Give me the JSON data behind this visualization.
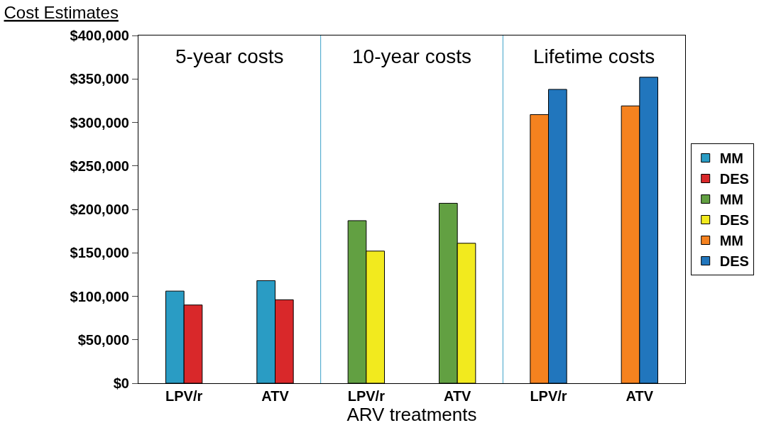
{
  "chart_data": {
    "type": "bar",
    "title": "Cost Estimates",
    "xlabel": "ARV treatments",
    "categories": [
      "LPV/r",
      "ATV",
      "LPV/r",
      "ATV",
      "LPV/r",
      "ATV"
    ],
    "series": [
      {
        "name": "MM",
        "color": "#2a9cc4",
        "values": [
          106000,
          118000,
          null,
          null,
          null,
          null
        ]
      },
      {
        "name": "DES",
        "color": "#d9282a",
        "values": [
          90000,
          96000,
          null,
          null,
          null,
          null
        ]
      },
      {
        "name": "MM",
        "color": "#62a042",
        "values": [
          null,
          null,
          187000,
          207000,
          null,
          null
        ]
      },
      {
        "name": "DES",
        "color": "#f2ea1e",
        "values": [
          null,
          null,
          152000,
          161000,
          null,
          null
        ]
      },
      {
        "name": "MM",
        "color": "#f5821f",
        "values": [
          null,
          null,
          null,
          null,
          309000,
          319000
        ]
      },
      {
        "name": "DES",
        "color": "#2176bd",
        "values": [
          null,
          null,
          null,
          null,
          338000,
          352000
        ]
      }
    ],
    "annotations": [
      "5-year costs",
      "10-year costs",
      "Lifetime costs"
    ],
    "ylim": [
      0,
      400000
    ],
    "yticks": [
      {
        "value": 0,
        "label": "$0"
      },
      {
        "value": 50000,
        "label": "$50,000"
      },
      {
        "value": 100000,
        "label": "$100,000"
      },
      {
        "value": 150000,
        "label": "$150,000"
      },
      {
        "value": 200000,
        "label": "$200,000"
      },
      {
        "value": 250000,
        "label": "$250,000"
      },
      {
        "value": 300000,
        "label": "$300,000"
      },
      {
        "value": 350000,
        "label": "$350,000"
      },
      {
        "value": 400000,
        "label": "$400,000"
      }
    ],
    "legend": "right"
  }
}
